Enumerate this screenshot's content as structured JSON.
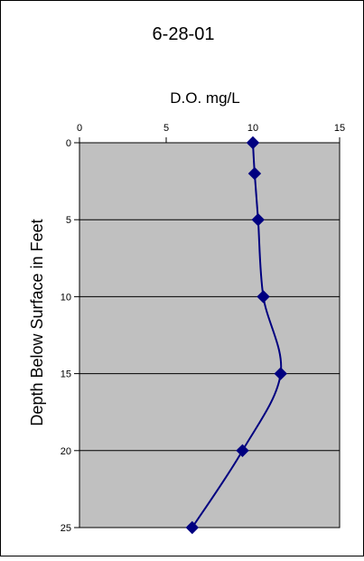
{
  "chart_data": {
    "type": "line",
    "title": "6-28-01",
    "xlabel": "D.O. mg/L",
    "ylabel": "Depth Below Surface in Feet",
    "xlim": [
      0,
      15
    ],
    "ylim": [
      0,
      25
    ],
    "x_ticks": [
      "0",
      "5",
      "10",
      "15"
    ],
    "y_ticks": [
      "0",
      "5",
      "10",
      "15",
      "20",
      "25"
    ],
    "y_inverted": true,
    "x_axis_position": "top",
    "grid": "horizontal",
    "smoothed": true,
    "marker": "diamond",
    "series": [
      {
        "points": [
          {
            "x": 10.0,
            "y": 0
          },
          {
            "x": 10.1,
            "y": 2
          },
          {
            "x": 10.3,
            "y": 5
          },
          {
            "x": 10.6,
            "y": 10
          },
          {
            "x": 11.6,
            "y": 15
          },
          {
            "x": 9.4,
            "y": 20
          },
          {
            "x": 6.5,
            "y": 25
          }
        ]
      }
    ]
  },
  "colors": {
    "plot_background": "#c0c0c0",
    "line": "#000080",
    "marker": "#000080",
    "gridline": "#000000",
    "border": "#000000"
  }
}
